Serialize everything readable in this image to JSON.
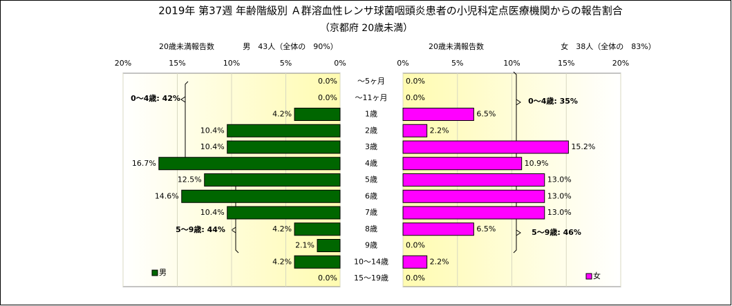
{
  "chart_data": [
    {
      "type": "barh",
      "title": "2019年 第37週 年齢階級別 Ａ群溶血性レンサ球菌咽頭炎患者の小児科定点医療機関からの報告割合",
      "subtitle": "（京都府 20歳未満）",
      "header_left": "20歳未満報告数",
      "header_right": "男　43人（全体の　90%）",
      "x_reversed": true,
      "color": "#006600",
      "categories": [
        "～5ヶ月",
        "～11ヶ月",
        "1歳",
        "2歳",
        "3歳",
        "4歳",
        "5歳",
        "6歳",
        "7歳",
        "8歳",
        "9歳",
        "10～14歳",
        "15～19歳"
      ],
      "series": [
        {
          "name": "男",
          "color": "#006600",
          "values": [
            0.0,
            0.0,
            4.2,
            10.4,
            10.4,
            16.7,
            12.5,
            14.6,
            10.4,
            4.2,
            2.1,
            4.2,
            0.0
          ],
          "value_labels": [
            "0.0%",
            "0.0%",
            "4.2%",
            "10.4%",
            "10.4%",
            "16.7%",
            "12.5%",
            "14.6%",
            "10.4%",
            "4.2%",
            "2.1%",
            "4.2%",
            "0.0%"
          ]
        }
      ],
      "xlim": [
        0,
        20
      ],
      "xticks": [
        {
          "value": 0,
          "label": "0%"
        },
        {
          "value": 5,
          "label": "5%"
        },
        {
          "value": 10,
          "label": "10%"
        },
        {
          "value": 15,
          "label": "15%"
        },
        {
          "value": 20,
          "label": "20%"
        }
      ],
      "annotations": [
        "0～4歳: 42%",
        "5～9歳: 44%"
      ],
      "grid": true
    },
    {
      "type": "barh",
      "header_left": "20歳未満報告数",
      "header_right": "女　38人（全体の　83%）",
      "x_reversed": false,
      "color": "#ff00ff",
      "series": [
        {
          "name": "女",
          "color": "#ff00ff",
          "values": [
            0.0,
            0.0,
            6.5,
            2.2,
            15.2,
            10.9,
            13.0,
            13.0,
            13.0,
            6.5,
            0.0,
            2.2,
            0.0
          ],
          "value_labels": [
            "0.0%",
            "0.0%",
            "6.5%",
            "2.2%",
            "15.2%",
            "10.9%",
            "13.0%",
            "13.0%",
            "13.0%",
            "6.5%",
            "0.0%",
            "2.2%",
            "0.0%"
          ]
        }
      ],
      "xlim": [
        0,
        20
      ],
      "xticks": [
        {
          "value": 0,
          "label": "0%"
        },
        {
          "value": 5,
          "label": "5%"
        },
        {
          "value": 10,
          "label": "10%"
        },
        {
          "value": 15,
          "label": "15%"
        },
        {
          "value": 20,
          "label": "20%"
        }
      ],
      "annotations": [
        "0～4歳: 35%",
        "5～9歳: 46%"
      ],
      "grid": true
    }
  ]
}
